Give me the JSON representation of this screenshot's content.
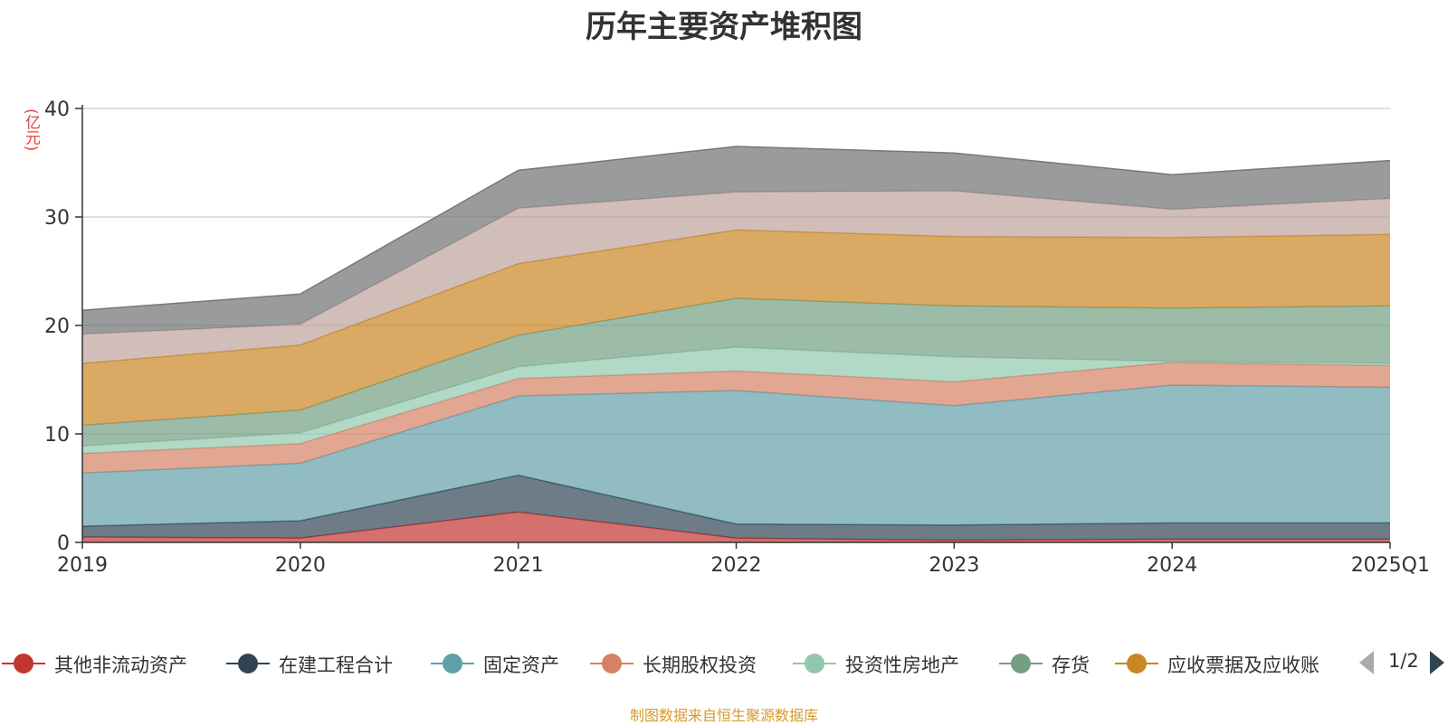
{
  "title": "历年主要资产堆积图",
  "unit_label": "(亿元)",
  "footnote": "制图数据来自恒生聚源数据库",
  "pager": {
    "text": "1/2"
  },
  "chart_data": {
    "type": "area",
    "stacked": true,
    "title": "历年主要资产堆积图",
    "ylabel": "(亿元)",
    "ylim": [
      0,
      40
    ],
    "yticks": [
      0,
      10,
      20,
      30,
      40
    ],
    "grid": true,
    "legend_position": "bottom",
    "categories": [
      "2019",
      "2020",
      "2021",
      "2022",
      "2023",
      "2024",
      "2025Q1"
    ],
    "series": [
      {
        "name": "其他非流动资产",
        "color": "#c23531",
        "values": [
          0.5,
          0.4,
          2.8,
          0.4,
          0.2,
          0.3,
          0.3
        ]
      },
      {
        "name": "在建工程合计",
        "color": "#2f4554",
        "values": [
          1.0,
          1.6,
          3.4,
          1.3,
          1.4,
          1.5,
          1.5
        ]
      },
      {
        "name": "固定资产",
        "color": "#61a0a8",
        "values": [
          4.9,
          5.3,
          7.3,
          12.3,
          11.0,
          12.7,
          12.5
        ]
      },
      {
        "name": "长期股权投资",
        "color": "#d48265",
        "values": [
          1.8,
          1.8,
          1.6,
          1.8,
          2.2,
          2.1,
          2.0
        ]
      },
      {
        "name": "投资性房地产",
        "color": "#91c7ae",
        "values": [
          0.7,
          1.0,
          1.1,
          2.2,
          2.3,
          0.1,
          0.2
        ]
      },
      {
        "name": "存货",
        "color": "#749f83",
        "values": [
          1.9,
          2.1,
          2.9,
          4.5,
          4.7,
          4.9,
          5.3
        ]
      },
      {
        "name": "应收票据及应收账",
        "color": "#ca8622",
        "values": [
          5.7,
          6.0,
          6.6,
          6.3,
          6.4,
          6.5,
          6.6
        ]
      },
      {
        "name": "",
        "color": "#bda29a",
        "values": [
          2.7,
          1.9,
          5.1,
          3.5,
          4.2,
          2.6,
          3.3
        ]
      },
      {
        "name": "",
        "color": "#6e7074",
        "values": [
          2.2,
          2.8,
          3.5,
          4.2,
          3.5,
          3.2,
          3.5
        ]
      }
    ]
  },
  "legend": [
    {
      "name": "其他非流动资产",
      "color": "#c23531"
    },
    {
      "name": "在建工程合计",
      "color": "#2f4554"
    },
    {
      "name": "固定资产",
      "color": "#61a0a8"
    },
    {
      "name": "长期股权投资",
      "color": "#d48265"
    },
    {
      "name": "投资性房地产",
      "color": "#91c7ae"
    },
    {
      "name": "存货",
      "color": "#749f83"
    },
    {
      "name": "应收票据及应收账",
      "color": "#ca8622"
    }
  ]
}
